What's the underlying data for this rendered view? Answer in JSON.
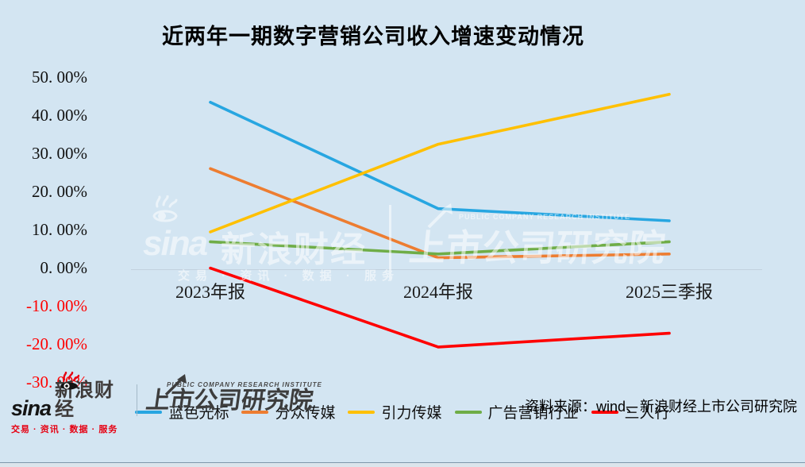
{
  "title": "近两年一期数字营销公司收入增速变动情况",
  "chart_data": {
    "type": "line",
    "title": "近两年一期数字营销公司收入增速变动情况",
    "categories": [
      "2023年报",
      "2024年报",
      "2025三季报"
    ],
    "series": [
      {
        "name": "蓝色光标",
        "color": "#27a6e1",
        "values": [
          43.8,
          15.9,
          12.7
        ]
      },
      {
        "name": "分众传媒",
        "color": "#ed7d31",
        "values": [
          26.4,
          3.0,
          4.0
        ]
      },
      {
        "name": "引力传媒",
        "color": "#ffc000",
        "values": [
          9.8,
          32.8,
          45.9
        ]
      },
      {
        "name": "广告营销行业",
        "color": "#6fad47",
        "values": [
          7.2,
          4.0,
          7.2
        ]
      },
      {
        "name": "三人行",
        "color": "#ff0000",
        "values": [
          0.3,
          -20.4,
          -16.8
        ]
      }
    ],
    "ylim": [
      -30,
      50
    ],
    "ytick_step": 10,
    "ytick_labels": [
      "50. 00%",
      "40. 00%",
      "30. 00%",
      "20. 00%",
      "10. 00%",
      "0. 00%",
      "-10. 00%",
      "-20. 00%",
      "-30. 00%"
    ],
    "negative_tick_color": "#ff0000",
    "grid": "zero-line-only",
    "legend_position": "bottom",
    "background_color": "#d3e5f2"
  },
  "watermark": {
    "sina_word": "sina",
    "finance_text": "新浪财经",
    "tagline": "交易 · 资讯 · 数据 · 服务",
    "institute_en": "PUBLIC COMPANY RESEARCH INSTITUTE",
    "institute_cn": "上市公司研究院"
  },
  "footer": {
    "sina_word": "sina",
    "sina_finance": "新浪财经",
    "sina_tagline": "交易 · 资讯 · 数据 · 服务",
    "institute_en": "PUBLIC COMPANY RESEARCH INSTITUTE",
    "institute_cn": "上市公司研究院",
    "source": "资料来源：wind、新浪财经上市公司研究院"
  }
}
